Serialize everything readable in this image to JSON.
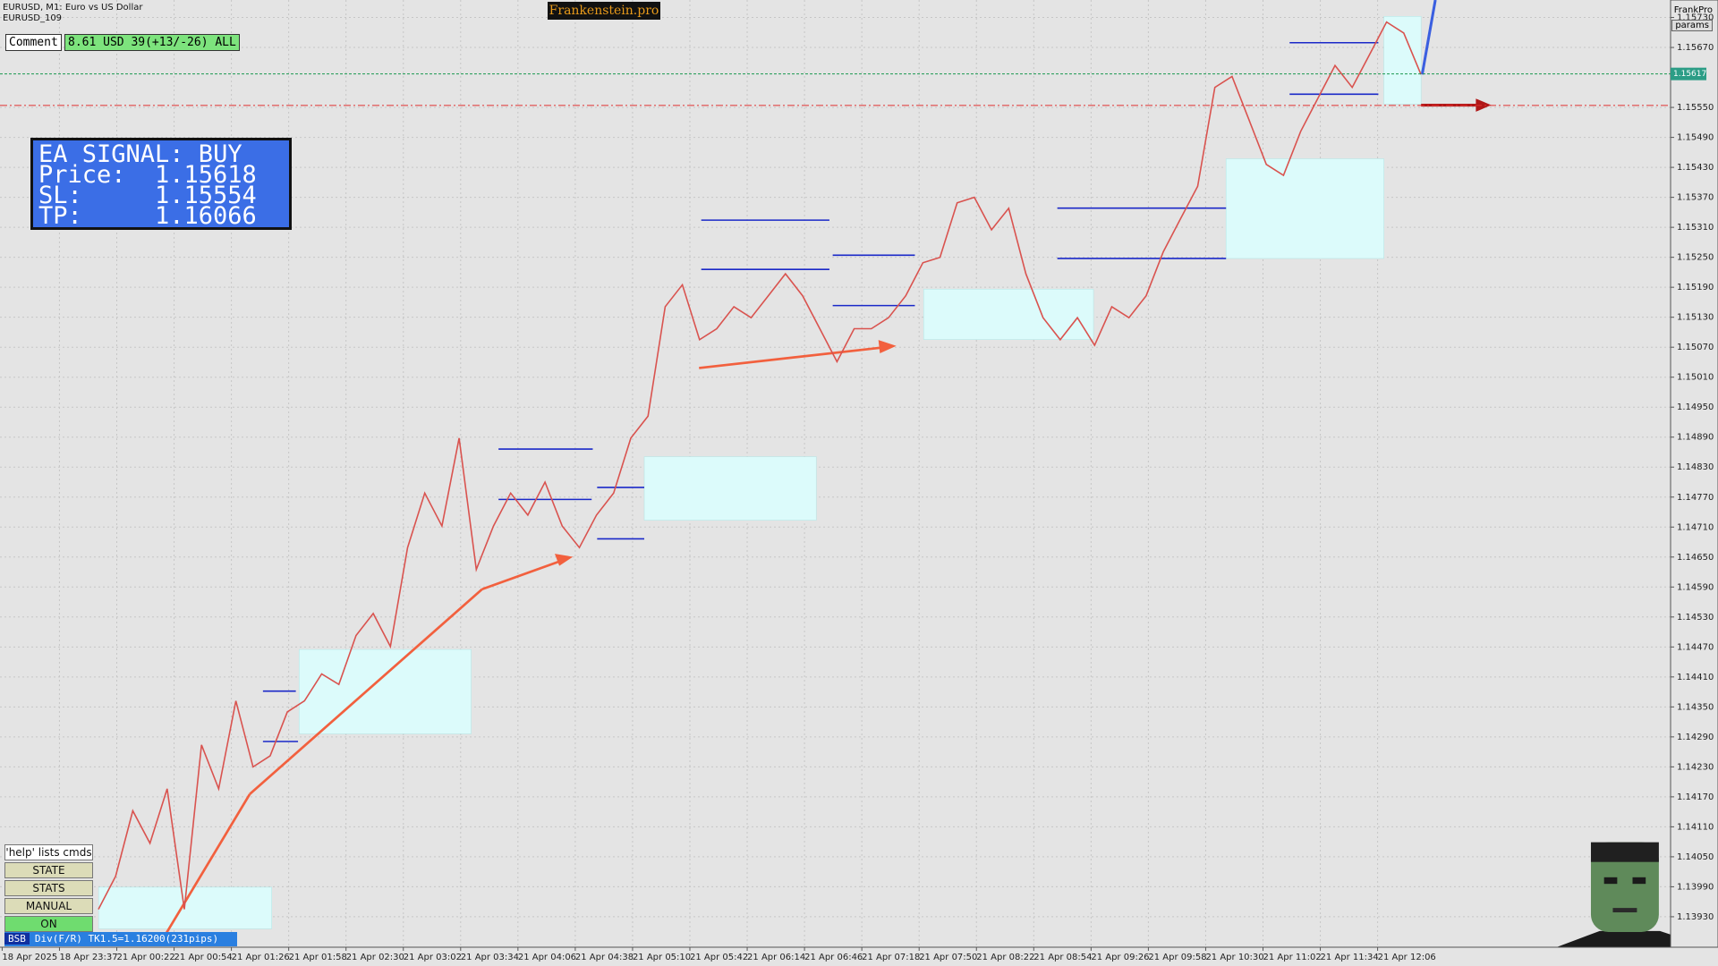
{
  "header": {
    "symbol": "EURUSD, M1:  Euro vs US Dollar",
    "account": "EURUSD_109",
    "brand": "Frankenstein.pro",
    "user": "FrankPro",
    "params_button": "params"
  },
  "comment": {
    "label": "Comment",
    "text": "8.61 USD 39(+13/-26) ALL"
  },
  "ea_signal": {
    "title": "EA SIGNAL: BUY",
    "price_label": "Price:",
    "price": 1.15618,
    "sl_label": "SL:",
    "sl": 1.15554,
    "tp_label": "TP:",
    "tp": 1.16066
  },
  "buttons": [
    "'help' lists cmds",
    "STATE",
    "STATS",
    "MANUAL",
    "ON"
  ],
  "status": {
    "tag": "BSB",
    "text": "Div(F/R) TK1.5=1.16200(231pips)"
  },
  "chart_data": {
    "type": "line",
    "color": "#d9534f",
    "grid": true,
    "current_price": 1.15617,
    "ylim": [
      1.13869,
      1.15765
    ],
    "yticks": [
      {
        "value": 1.1573,
        "label": "1.15730"
      },
      {
        "value": 1.1567,
        "label": "1.15670"
      },
      {
        "value": 1.1555,
        "label": "1.15550"
      },
      {
        "value": 1.1549,
        "label": "1.15490"
      },
      {
        "value": 1.1543,
        "label": "1.15430"
      },
      {
        "value": 1.1537,
        "label": "1.15370"
      },
      {
        "value": 1.1531,
        "label": "1.15310"
      },
      {
        "value": 1.1525,
        "label": "1.15250"
      },
      {
        "value": 1.1519,
        "label": "1.15190"
      },
      {
        "value": 1.1513,
        "label": "1.15130"
      },
      {
        "value": 1.1507,
        "label": "1.15070"
      },
      {
        "value": 1.1501,
        "label": "1.15010"
      },
      {
        "value": 1.1495,
        "label": "1.14950"
      },
      {
        "value": 1.1489,
        "label": "1.14890"
      },
      {
        "value": 1.1483,
        "label": "1.14830"
      },
      {
        "value": 1.1477,
        "label": "1.14770"
      },
      {
        "value": 1.1471,
        "label": "1.14710"
      },
      {
        "value": 1.1465,
        "label": "1.14650"
      },
      {
        "value": 1.1459,
        "label": "1.14590"
      },
      {
        "value": 1.1453,
        "label": "1.14530"
      },
      {
        "value": 1.1447,
        "label": "1.14470"
      },
      {
        "value": 1.1441,
        "label": "1.14410"
      },
      {
        "value": 1.1435,
        "label": "1.14350"
      },
      {
        "value": 1.1429,
        "label": "1.14290"
      },
      {
        "value": 1.1423,
        "label": "1.14230"
      },
      {
        "value": 1.1417,
        "label": "1.14170"
      },
      {
        "value": 1.1411,
        "label": "1.14110"
      },
      {
        "value": 1.1405,
        "label": "1.14050"
      },
      {
        "value": 1.1399,
        "label": "1.13990"
      },
      {
        "value": 1.1393,
        "label": "1.13930"
      }
    ],
    "x_labels": [
      "18 Apr 2025",
      "18 Apr 23:37",
      "21 Apr 00:22",
      "21 Apr 00:54",
      "21 Apr 01:26",
      "21 Apr 01:58",
      "21 Apr 02:30",
      "21 Apr 03:02",
      "21 Apr 03:34",
      "21 Apr 04:06",
      "21 Apr 04:38",
      "21 Apr 05:10",
      "21 Apr 05:42",
      "21 Apr 06:14",
      "21 Apr 06:46",
      "21 Apr 07:18",
      "21 Apr 07:50",
      "21 Apr 08:22",
      "21 Apr 08:54",
      "21 Apr 09:26",
      "21 Apr 09:58",
      "21 Apr 10:30",
      "21 Apr 11:02",
      "21 Apr 11:34",
      "21 Apr 12:06"
    ],
    "values": [
      1.13945,
      1.14011,
      1.14142,
      1.14077,
      1.14186,
      1.13945,
      1.14274,
      1.14186,
      1.14362,
      1.1423,
      1.14252,
      1.1434,
      1.14362,
      1.14416,
      1.14395,
      1.14493,
      1.14537,
      1.14471,
      1.14669,
      1.14778,
      1.14712,
      1.14888,
      1.14625,
      1.14712,
      1.14778,
      1.14734,
      1.148,
      1.14712,
      1.14669,
      1.14734,
      1.14778,
      1.14888,
      1.14932,
      1.15151,
      1.15195,
      1.15085,
      1.15107,
      1.15151,
      1.15129,
      1.15173,
      1.15217,
      1.15173,
      1.15107,
      1.15041,
      1.15107,
      1.15107,
      1.15129,
      1.15173,
      1.15239,
      1.1525,
      1.15359,
      1.1537,
      1.15305,
      1.15348,
      1.15217,
      1.15129,
      1.15085,
      1.15129,
      1.15074,
      1.15151,
      1.15129,
      1.15173,
      1.15261,
      1.15327,
      1.15392,
      1.1559,
      1.15612,
      1.15524,
      1.15436,
      1.15414,
      1.15502,
      1.15568,
      1.15634,
      1.1559,
      1.15655,
      1.15721,
      1.15699,
      1.15616
    ]
  }
}
